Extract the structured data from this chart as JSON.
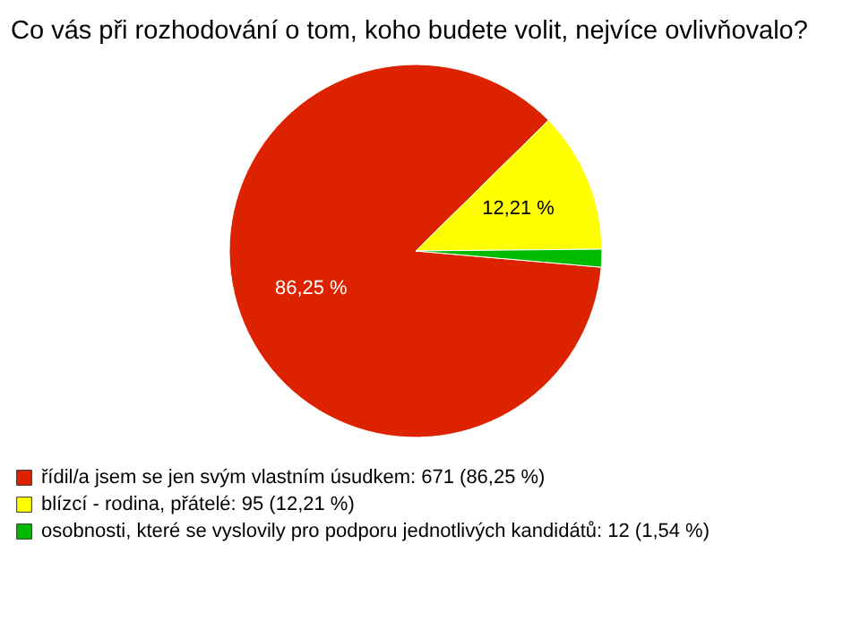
{
  "chart_data": {
    "type": "pie",
    "title": "Co vás při rozhodování o tom, koho budete volit, nejvíce ovlivňovalo?",
    "categories": [
      "řídil/a jsem se jen svým vlastním úsudkem: 671 (86,25 %)",
      "blízcí - rodina, přátelé: 95 (12,21 %)",
      "osobnosti, které se vyslovily pro podporu jednotlivých kandidátů: 12 (1,54 %)"
    ],
    "values": [
      86.25,
      12.21,
      1.54
    ],
    "colors": [
      "#dd2200",
      "#ffff00",
      "#00bb00"
    ],
    "value_labels": [
      "86,25 %",
      "12,21 %",
      null
    ],
    "legend": "bottom"
  }
}
